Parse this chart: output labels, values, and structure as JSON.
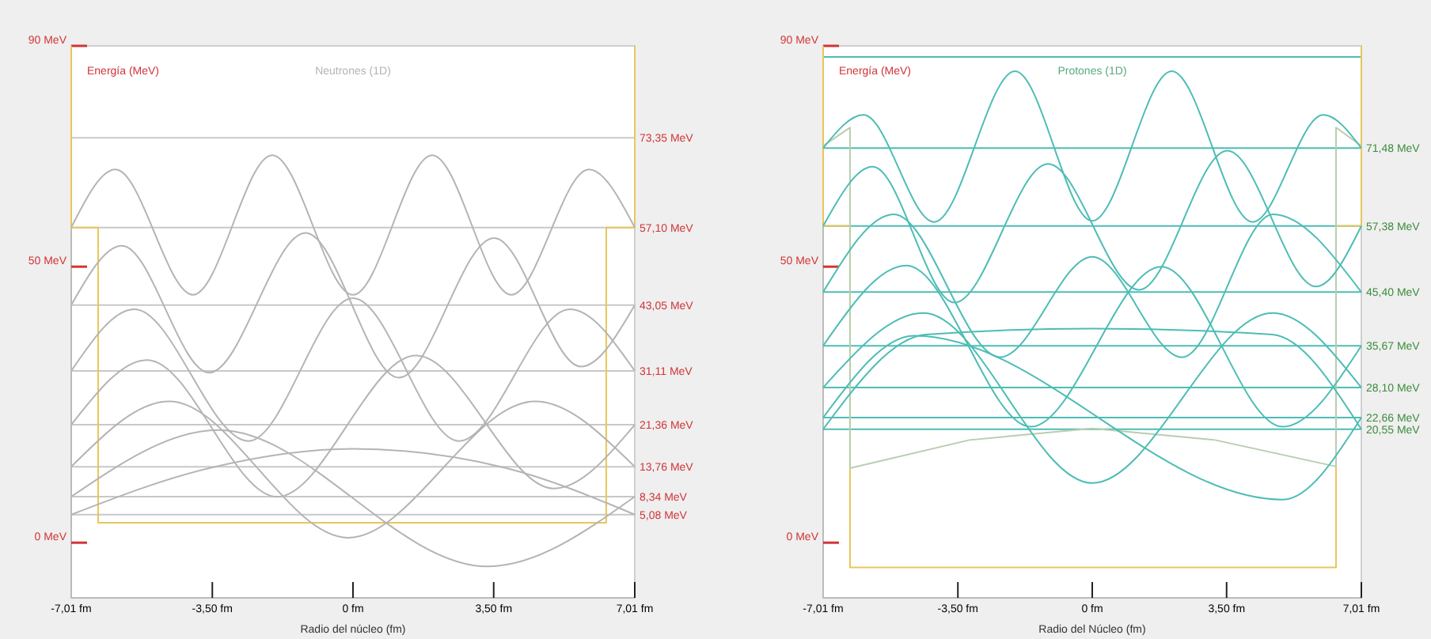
{
  "chart_data": [
    {
      "type": "line",
      "title": "Neutrones (1D)",
      "ylabel": "Energía (MeV)",
      "xlabel": "Radio del núcleo (fm)",
      "xlim": [
        -7.01,
        7.01
      ],
      "ylim": [
        -10,
        90
      ],
      "xticks": [
        {
          "value": -7.01,
          "label": "-7,01 fm"
        },
        {
          "value": -3.5,
          "label": "-3,50 fm"
        },
        {
          "value": 0,
          "label": "0 fm"
        },
        {
          "value": 3.5,
          "label": "3,50 fm"
        },
        {
          "value": 7.01,
          "label": "7,01 fm"
        }
      ],
      "yticks": [
        {
          "value": 0,
          "label": "0 MeV"
        },
        {
          "value": 50,
          "label": "50 MeV"
        },
        {
          "value": 90,
          "label": "90 MeV"
        }
      ],
      "series": [
        {
          "color": "#e8c65a",
          "x": [
            -7.01,
            -7.01,
            -6.34,
            -6.34,
            6.3,
            6.3,
            7.01,
            7.01
          ],
          "values": [
            90,
            57.1,
            57.1,
            3.6,
            3.6,
            57.1,
            57.1,
            90
          ]
        },
        {
          "color": "#b4b4b4",
          "x": [
            -7.01,
            -5.91,
            -3.98,
            -2.01,
            0,
            1.97,
            3.94,
            5.87,
            7.01
          ],
          "values": [
            57.1,
            67.6,
            44.9,
            70.2,
            44.9,
            70.2,
            44.9,
            67.6,
            57.1
          ]
        },
        {
          "color": "#b4b4b4",
          "x": [
            -7.01,
            -5.75,
            -3.58,
            -1.18,
            1.14,
            3.51,
            5.67,
            7.01
          ],
          "values": [
            43.05,
            53.8,
            30.8,
            56.1,
            29.9,
            55.2,
            31.9,
            43.05
          ]
        },
        {
          "color": "#b4b4b4",
          "x": [
            -7.01,
            -5.44,
            -2.6,
            0,
            2.64,
            5.4,
            7.01
          ],
          "values": [
            31.11,
            42.3,
            18.4,
            44.3,
            18.4,
            42.3,
            31.11
          ]
        },
        {
          "color": "#b4b4b4",
          "x": [
            -7.01,
            -5.12,
            -1.89,
            1.57,
            5.0,
            7.01
          ],
          "values": [
            21.36,
            33.1,
            8.3,
            33.9,
            9.8,
            21.36
          ]
        },
        {
          "color": "#b4b4b4",
          "x": [
            -7.01,
            -4.57,
            -0.12,
            4.53,
            7.01
          ],
          "values": [
            13.76,
            25.6,
            0.9,
            25.6,
            13.76
          ]
        },
        {
          "color": "#b4b4b4",
          "x": [
            -7.01,
            -3.35,
            3.35,
            7.01
          ],
          "values": [
            8.34,
            20.4,
            -4.3,
            8.34
          ]
        },
        {
          "color": "#b4b4b4",
          "x": [
            -7.01,
            -3.58,
            0,
            3.82,
            7.01
          ],
          "values": [
            5.08,
            13.5,
            17.0,
            13.5,
            5.08
          ]
        }
      ],
      "ref_lines": [
        {
          "axis": "y",
          "value": 73.35,
          "label": "73,35 MeV",
          "color": "#c8c8c8"
        },
        {
          "axis": "y",
          "value": 57.1,
          "label": "57,10 MeV",
          "color": "#c8c8c8"
        },
        {
          "axis": "y",
          "value": 43.05,
          "label": "43,05 MeV",
          "color": "#c8c8c8"
        },
        {
          "axis": "y",
          "value": 31.11,
          "label": "31,11 MeV",
          "color": "#c8c8c8"
        },
        {
          "axis": "y",
          "value": 21.36,
          "label": "21,36 MeV",
          "color": "#c8c8c8"
        },
        {
          "axis": "y",
          "value": 13.76,
          "label": "13,76 MeV",
          "color": "#c8c8c8"
        },
        {
          "axis": "y",
          "value": 8.34,
          "label": "8,34 MeV",
          "color": "#c8c8c8"
        },
        {
          "axis": "y",
          "value": 5.08,
          "label": "5,08 MeV",
          "color": "#c8c8c8"
        }
      ]
    },
    {
      "type": "line",
      "title": "Protones (1D)",
      "ylabel": "Energía (MeV)",
      "xlabel": "Radio del Núcleo (fm)",
      "xlim": [
        -7.01,
        7.01
      ],
      "ylim": [
        -10,
        90
      ],
      "xticks": [
        {
          "value": -7.01,
          "label": "-7,01 fm"
        },
        {
          "value": -3.5,
          "label": "-3,50 fm"
        },
        {
          "value": 0,
          "label": "0 fm"
        },
        {
          "value": 3.5,
          "label": "3,50 fm"
        },
        {
          "value": 7.01,
          "label": "7,01 fm"
        }
      ],
      "yticks": [
        {
          "value": 0,
          "label": "0 MeV"
        },
        {
          "value": 50,
          "label": "50 MeV"
        },
        {
          "value": 90,
          "label": "90 MeV"
        }
      ],
      "series": [
        {
          "color": "#e8c65a",
          "x": [
            -7.01,
            -7.01,
            -6.31,
            -6.31,
            6.35,
            6.35,
            7.01,
            7.01
          ],
          "values": [
            90,
            57.38,
            57.38,
            -4.5,
            -4.5,
            57.38,
            57.38,
            90
          ]
        },
        {
          "color": "#b9cdb0",
          "x": [
            -7.01,
            -6.31,
            -6.31,
            -3.2,
            0,
            3.2,
            6.35,
            6.35,
            7.01
          ],
          "values": [
            71.9,
            75.2,
            13.5,
            18.6,
            20.7,
            18.6,
            13.8,
            75.2,
            71.9
          ]
        },
        {
          "color": "#4dbdb5",
          "x": [
            -7.01,
            -5.96,
            -4.12,
            -2.01,
            0,
            2.07,
            4.18,
            6.02,
            7.01
          ],
          "values": [
            71.48,
            77.5,
            58.1,
            85.4,
            58.3,
            85.4,
            58.1,
            77.5,
            71.48
          ]
        },
        {
          "color": "#4dbdb5",
          "x": [
            -7.01,
            -5.72,
            -3.59,
            -1.15,
            1.22,
            3.52,
            5.83,
            7.01
          ],
          "values": [
            57.38,
            68.1,
            43.5,
            68.6,
            45.8,
            71.0,
            46.4,
            57.38
          ]
        },
        {
          "color": "#4dbdb5",
          "x": [
            -7.01,
            -5.17,
            -2.4,
            0,
            2.34,
            4.71,
            7.01
          ],
          "values": [
            45.4,
            59.5,
            33.6,
            51.8,
            33.6,
            59.5,
            45.4
          ]
        },
        {
          "color": "#4dbdb5",
          "x": [
            -7.01,
            -4.84,
            -1.6,
            1.8,
            4.96,
            7.01
          ],
          "values": [
            35.67,
            50.2,
            21.0,
            50.0,
            21.0,
            35.67
          ]
        },
        {
          "color": "#4dbdb5",
          "x": [
            -7.01,
            -4.4,
            0,
            4.7,
            7.01
          ],
          "values": [
            28.1,
            41.6,
            10.8,
            41.6,
            28.1
          ]
        },
        {
          "color": "#4dbdb5",
          "x": [
            -7.01,
            -4.64,
            4.96,
            7.01
          ],
          "values": [
            22.66,
            37.5,
            7.8,
            22.66
          ]
        },
        {
          "color": "#4dbdb5",
          "x": [
            -7.01,
            -4.33,
            0,
            4.69,
            7.01
          ],
          "values": [
            20.55,
            37.7,
            38.8,
            37.7,
            20.55
          ]
        }
      ],
      "ref_lines": [
        {
          "axis": "y",
          "value": 88,
          "color": "#4dbdb5"
        },
        {
          "axis": "y",
          "value": 71.48,
          "label": "71,48 MeV",
          "color": "#4dbdb5"
        },
        {
          "axis": "y",
          "value": 57.38,
          "label": "57,38 MeV",
          "color": "#4dbdb5"
        },
        {
          "axis": "y",
          "value": 45.4,
          "label": "45,40 MeV",
          "color": "#4dbdb5"
        },
        {
          "axis": "y",
          "value": 35.67,
          "label": "35,67 MeV",
          "color": "#4dbdb5"
        },
        {
          "axis": "y",
          "value": 28.1,
          "label": "28,10 MeV",
          "color": "#4dbdb5"
        },
        {
          "axis": "y",
          "value": 22.66,
          "label": "22,66 MeV",
          "color": "#4dbdb5"
        },
        {
          "axis": "y",
          "value": 20.55,
          "label": "20,55 MeV",
          "color": "#4dbdb5"
        }
      ]
    }
  ]
}
